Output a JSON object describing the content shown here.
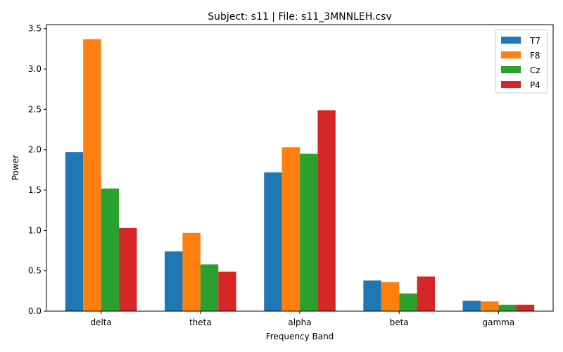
{
  "chart_data": {
    "type": "bar",
    "title": "Subject: s11 | File: s11_3MNNLEH.csv",
    "xlabel": "Frequency Band",
    "ylabel": "Power",
    "categories": [
      "delta",
      "theta",
      "alpha",
      "beta",
      "gamma"
    ],
    "ylim": [
      0,
      3.55
    ],
    "yticks": [
      "0.0",
      "0.5",
      "1.0",
      "1.5",
      "2.0",
      "2.5",
      "3.0",
      "3.5"
    ],
    "grid": false,
    "legend_position": "top-right",
    "series": [
      {
        "name": "T7",
        "color": "#1f77b4",
        "values": [
          1.97,
          0.74,
          1.72,
          0.38,
          0.13
        ]
      },
      {
        "name": "F8",
        "color": "#ff7f0e",
        "values": [
          3.37,
          0.97,
          2.03,
          0.36,
          0.12
        ]
      },
      {
        "name": "Cz",
        "color": "#2ca02c",
        "values": [
          1.52,
          0.58,
          1.95,
          0.22,
          0.08
        ]
      },
      {
        "name": "P4",
        "color": "#d62728",
        "values": [
          1.03,
          0.49,
          2.49,
          0.43,
          0.08
        ]
      }
    ]
  }
}
